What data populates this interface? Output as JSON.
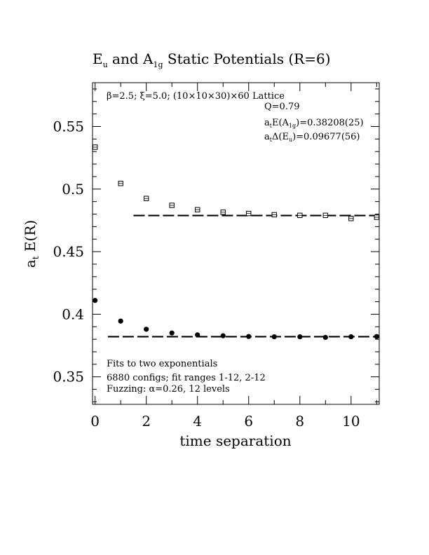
{
  "chart_data": {
    "type": "scatter",
    "title": {
      "text_1": "E",
      "sub_1": "u",
      "text_2": " and A",
      "sub_2": "1g",
      "text_3": " Static Potentials (R=6)"
    },
    "xlabel": "time separation",
    "ylabel": {
      "main": "a",
      "sub": "t",
      "rest": " E(R)"
    },
    "xlim": [
      -0.1,
      11.1
    ],
    "ylim": [
      0.328,
      0.585
    ],
    "x_ticks": [
      "0",
      "2",
      "4",
      "6",
      "8",
      "10"
    ],
    "x_tick_values": [
      0,
      2,
      4,
      6,
      8,
      10
    ],
    "y_ticks": [
      "0.35",
      "0.4",
      "0.45",
      "0.5",
      "0.55"
    ],
    "y_tick_values": [
      0.35,
      0.4,
      0.45,
      0.5,
      0.55
    ],
    "annotations": {
      "lattice": "β=2.5; ξ=5.0; (10×10×30)×60 Lattice",
      "q": "Q=0.79",
      "a1g_fit": {
        "pre": "a",
        "sub1": "t",
        "mid": "E(A",
        "sub2": "1g",
        "post": ")=0.38208(25)"
      },
      "eu_fit": {
        "pre": "a",
        "sub1": "t",
        "mid": "Δ(E",
        "sub2": "u",
        "post": ")=0.09677(56)"
      },
      "fits": "Fits to two exponentials",
      "configs": "6880 configs; fit ranges 1-12, 2-12",
      "fuzzing": "Fuzzing: α=0.26, 12 levels"
    },
    "series": [
      {
        "marker": "open-square",
        "x": [
          0,
          1,
          2,
          3,
          4,
          5,
          6,
          7,
          8,
          9,
          10,
          11
        ],
        "y": [
          0.5335,
          0.5045,
          0.4925,
          0.487,
          0.4835,
          0.4815,
          0.4805,
          0.4795,
          0.479,
          0.479,
          0.4765,
          0.4775
        ],
        "err": [
          0.0008,
          0.0008,
          0.0008,
          0.0008,
          0.0008,
          0.0009,
          0.001,
          0.0011,
          0.0012,
          0.0013,
          0.0015,
          0.002
        ]
      },
      {
        "marker": "filled-circle",
        "x": [
          0,
          1,
          2,
          3,
          4,
          5,
          6,
          7,
          8,
          9,
          10,
          11
        ],
        "y": [
          0.411,
          0.3945,
          0.388,
          0.385,
          0.3835,
          0.3828,
          0.3822,
          0.382,
          0.382,
          0.3815,
          0.382,
          0.3822
        ],
        "err": [
          0.0005,
          0.0004,
          0.0004,
          0.0004,
          0.0004,
          0.0004,
          0.0004,
          0.0005,
          0.0005,
          0.0006,
          0.0007,
          0.0009
        ]
      }
    ],
    "fit_lines": [
      {
        "x": [
          1.5,
          11.1
        ],
        "y": 0.47885,
        "style": "dashed"
      },
      {
        "x": [
          0.5,
          11.1
        ],
        "y": 0.38208,
        "style": "dashed"
      }
    ]
  }
}
